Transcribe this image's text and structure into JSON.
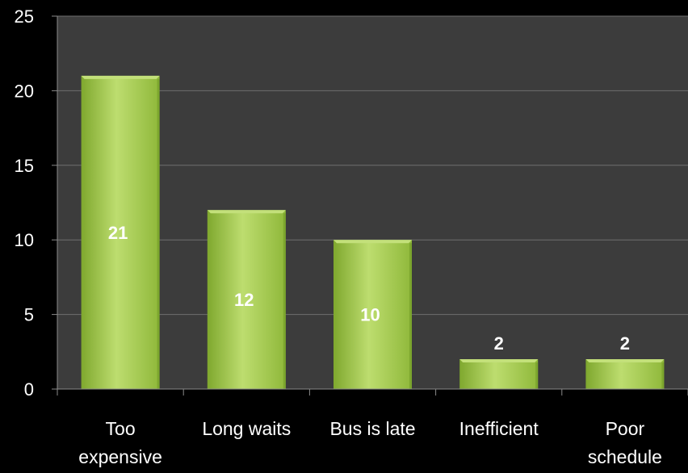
{
  "chart_data": {
    "type": "bar",
    "title": "",
    "xlabel": "",
    "ylabel": "",
    "categories": [
      "Too expensive",
      "Long waits",
      "Bus is late",
      "Inefficient",
      "Poor schedule"
    ],
    "category_lines": [
      [
        "Too",
        "expensive"
      ],
      [
        "Long waits"
      ],
      [
        "Bus is late"
      ],
      [
        "Inefficient"
      ],
      [
        "Poor",
        "schedule"
      ]
    ],
    "values": [
      21,
      12,
      10,
      2,
      2
    ],
    "data_labels": [
      "21",
      "12",
      "10",
      "2",
      "2"
    ],
    "ylim": [
      0,
      25
    ],
    "yticks": [
      "0",
      "5",
      "10",
      "15",
      "20",
      "25"
    ],
    "grid": true,
    "legend": "none"
  },
  "colors": {
    "background": "#000000",
    "plot_area": "#3c3c3c",
    "gridline": "#6e6e6e",
    "axis": "#8a8a8a",
    "bar_light": "#c3e07a",
    "bar_mid": "#9cc445",
    "bar_dark": "#6f9a24",
    "text": "#ffffff"
  }
}
